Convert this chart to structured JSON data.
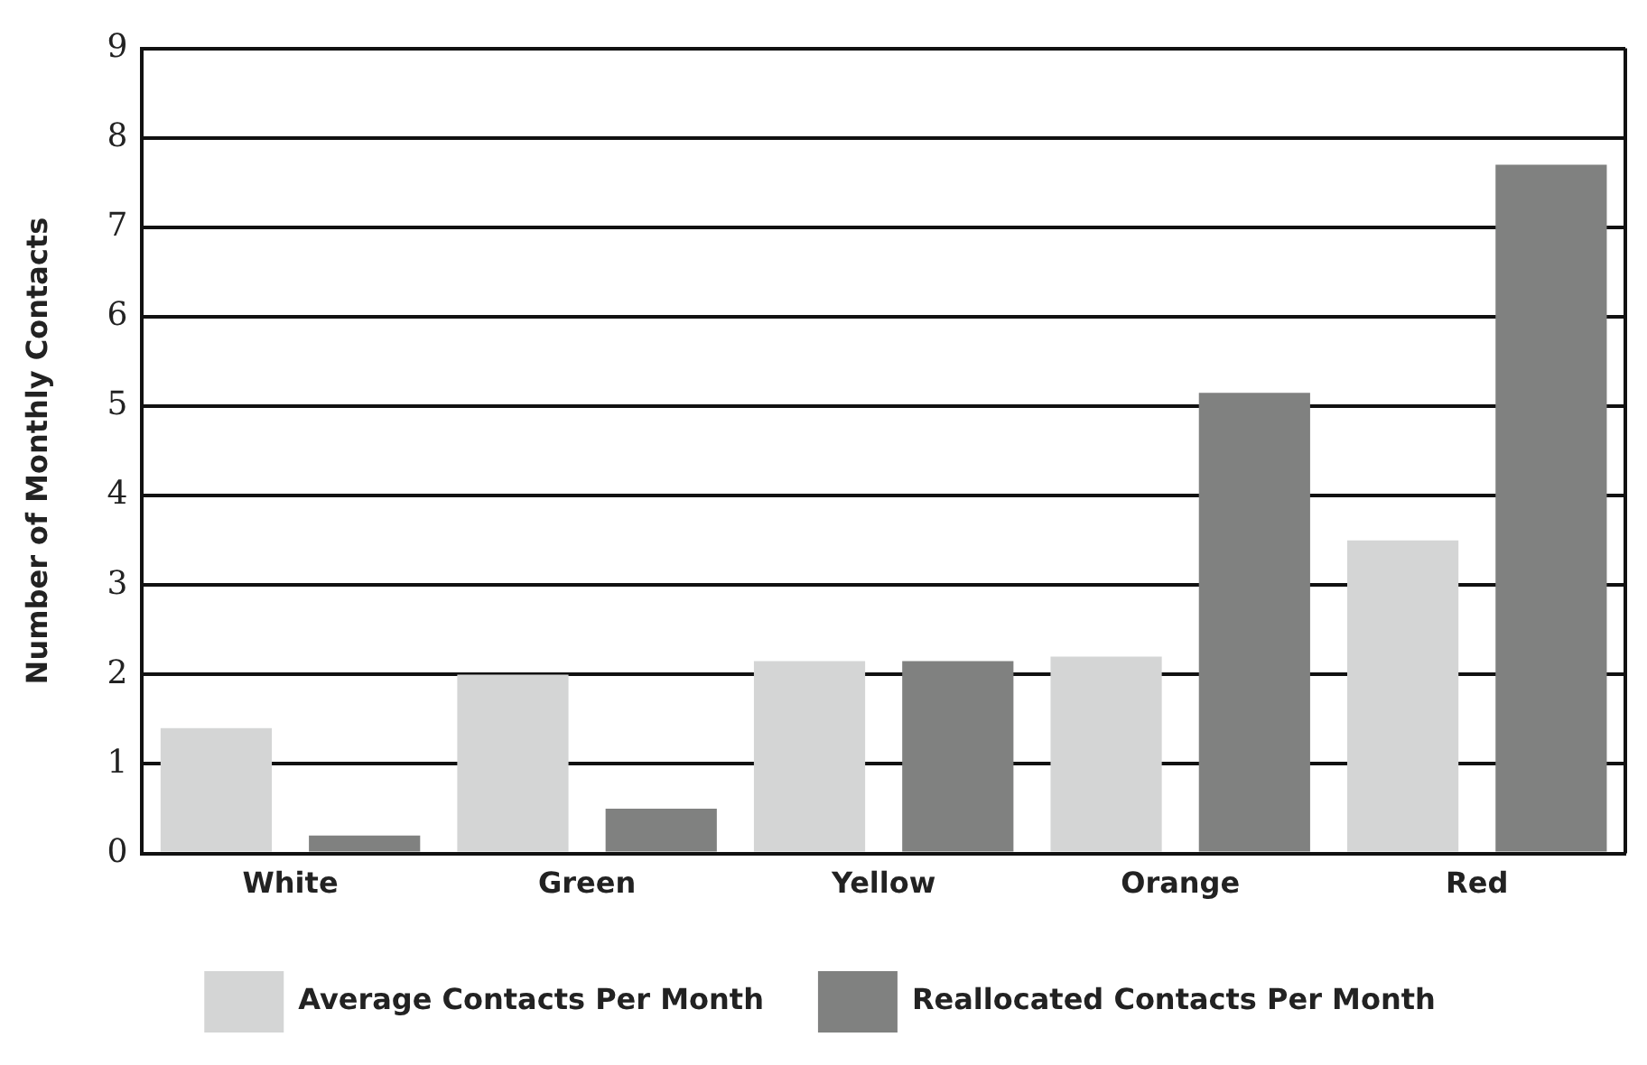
{
  "chart_data": {
    "type": "bar",
    "ylabel": "Number of Monthly Contacts",
    "categories": [
      "White",
      "Green",
      "Yellow",
      "Orange",
      "Red"
    ],
    "series": [
      {
        "name": "Average Contacts Per Month",
        "color": "#d4d5d5",
        "values": [
          1.4,
          2.0,
          2.15,
          2.2,
          3.5
        ]
      },
      {
        "name": "Reallocated Contacts Per Month",
        "color": "#808180",
        "values": [
          0.2,
          0.5,
          2.15,
          5.15,
          7.7
        ]
      }
    ],
    "ylim": [
      0,
      9
    ],
    "yticks": [
      0,
      1,
      2,
      3,
      4,
      5,
      6,
      7,
      8,
      9
    ],
    "grid": "y",
    "legend": "bottom"
  }
}
